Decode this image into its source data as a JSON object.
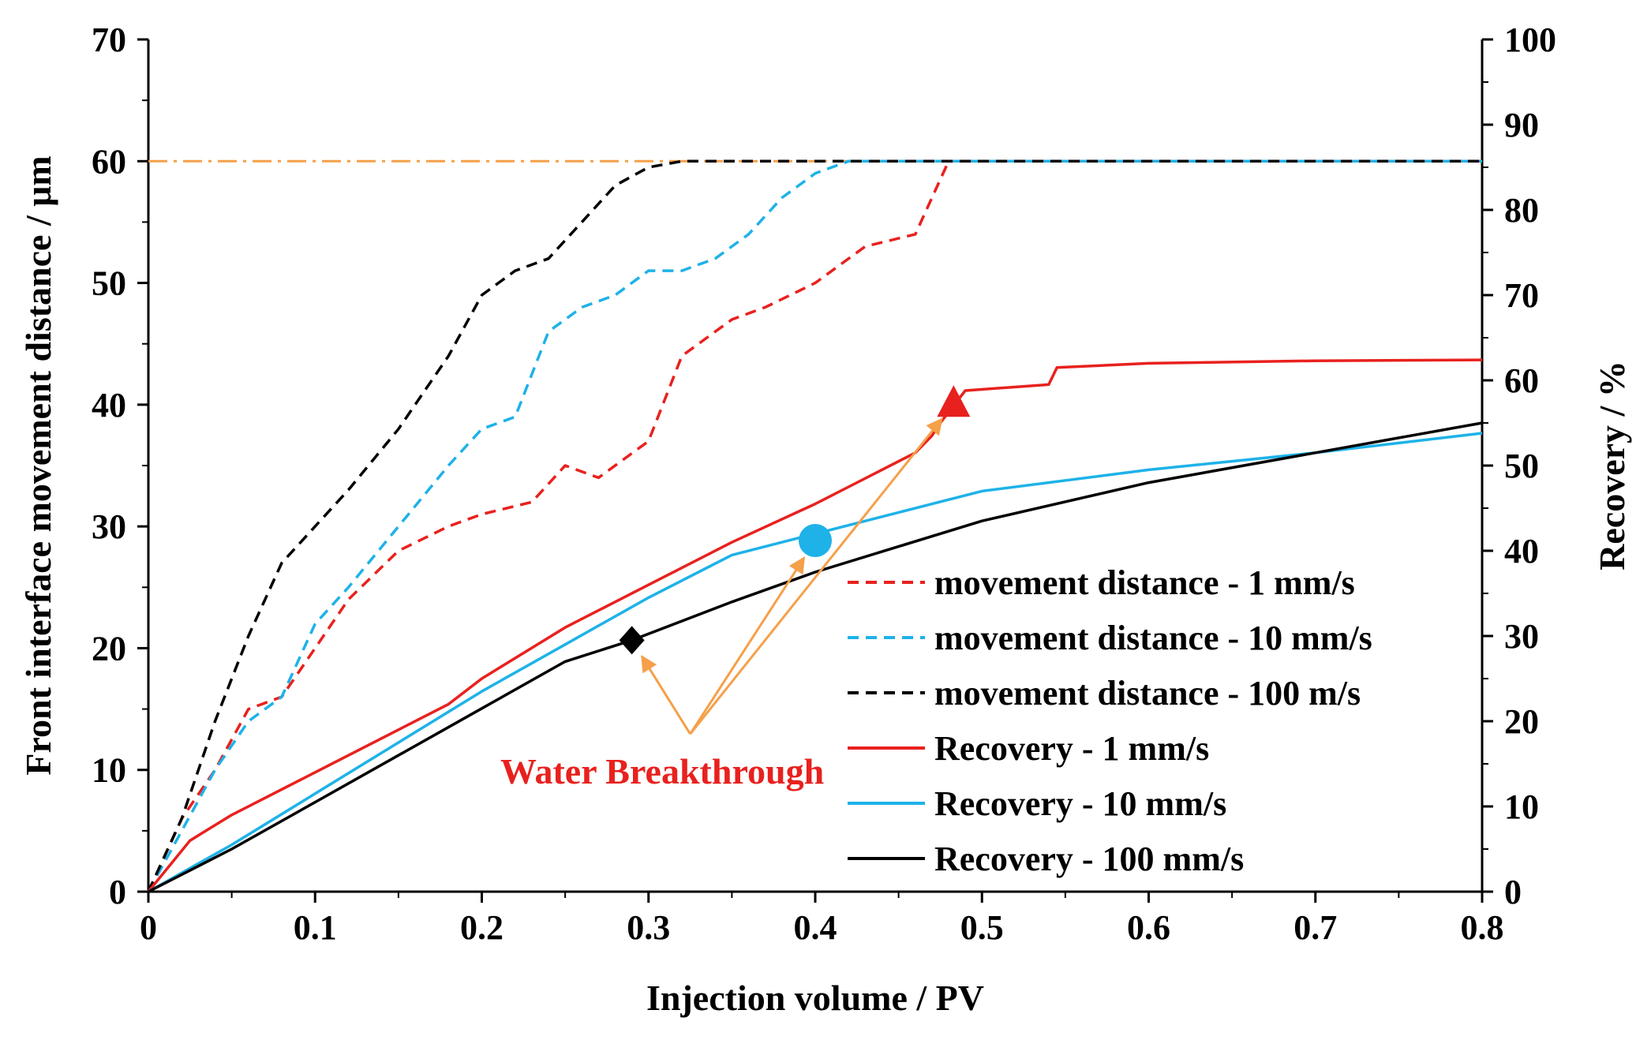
{
  "chart_data": {
    "type": "line",
    "title": "",
    "xlabel": "Injection  volume / PV",
    "ylabel_left": "Front interface movement distance / μm",
    "ylabel_right": "Recovery / %",
    "xlim": [
      0,
      0.8
    ],
    "ylim_left": [
      0,
      70
    ],
    "ylim_right": [
      0,
      100
    ],
    "x_ticks": [
      "0",
      "0.1",
      "0.2",
      "0.3",
      "0.4",
      "0.5",
      "0.6",
      "0.7",
      "0.8"
    ],
    "y_left_ticks": [
      "0",
      "10",
      "20",
      "30",
      "40",
      "50",
      "60",
      "70"
    ],
    "y_right_ticks": [
      "0",
      "10",
      "20",
      "30",
      "40",
      "50",
      "60",
      "70",
      "80",
      "90",
      "100"
    ],
    "grid": false,
    "legend_position": "bottom-right",
    "reference_line": {
      "axis": "left",
      "y": 60,
      "color": "#F5A04A",
      "style": "dash-dot"
    },
    "series": [
      {
        "name": "movement distance -  1 mm/s",
        "axis": "left",
        "style": "dashed",
        "color": "#E8211E",
        "x": [
          0,
          0.02,
          0.04,
          0.06,
          0.08,
          0.1,
          0.12,
          0.15,
          0.18,
          0.2,
          0.23,
          0.25,
          0.27,
          0.3,
          0.32,
          0.35,
          0.37,
          0.4,
          0.43,
          0.46,
          0.48,
          0.5,
          0.6,
          0.7,
          0.8
        ],
        "values": [
          0,
          6,
          10,
          15,
          16,
          20,
          24,
          28,
          30,
          31,
          32,
          35,
          34,
          37,
          44,
          47,
          48,
          50,
          53,
          54,
          60,
          60,
          60,
          60,
          60
        ]
      },
      {
        "name": "movement distance -  10 mm/s",
        "axis": "left",
        "style": "dashed",
        "color": "#1EB2E8",
        "x": [
          0,
          0.02,
          0.04,
          0.06,
          0.08,
          0.1,
          0.12,
          0.15,
          0.18,
          0.2,
          0.22,
          0.24,
          0.26,
          0.28,
          0.3,
          0.32,
          0.34,
          0.36,
          0.38,
          0.4,
          0.42,
          0.5,
          0.6,
          0.7,
          0.8
        ],
        "values": [
          0,
          5,
          10,
          14,
          16,
          22,
          25,
          30,
          35,
          38,
          39,
          46,
          48,
          49,
          51,
          51,
          52,
          54,
          57,
          59,
          60,
          60,
          60,
          60,
          60
        ]
      },
      {
        "name": "movement distance - 100 m/s",
        "axis": "left",
        "style": "dashed",
        "color": "#000000",
        "x": [
          0,
          0.02,
          0.04,
          0.06,
          0.08,
          0.1,
          0.12,
          0.15,
          0.18,
          0.2,
          0.22,
          0.24,
          0.26,
          0.28,
          0.3,
          0.32,
          0.4,
          0.5,
          0.6,
          0.7,
          0.8
        ],
        "values": [
          0,
          6,
          14,
          21,
          27,
          30,
          33,
          38,
          44,
          49,
          51,
          52,
          55,
          58,
          59.5,
          60,
          60,
          60,
          60,
          60,
          60
        ]
      },
      {
        "name": "Recovery -  1 mm/s",
        "axis": "right",
        "style": "solid",
        "color": "#E8211E",
        "x": [
          0,
          0.025,
          0.05,
          0.06,
          0.1,
          0.15,
          0.18,
          0.2,
          0.25,
          0.3,
          0.35,
          0.4,
          0.42,
          0.46,
          0.47,
          0.475,
          0.49,
          0.54,
          0.545,
          0.6,
          0.7,
          0.8
        ],
        "values": [
          0,
          6,
          9,
          10,
          14,
          19,
          22,
          25,
          31,
          36,
          41,
          45.5,
          47.5,
          51.5,
          53.5,
          55,
          58.8,
          59.5,
          61.5,
          62,
          62.3,
          62.4
        ]
      },
      {
        "name": "Recovery - 10 mm/s",
        "axis": "right",
        "style": "solid",
        "color": "#1EB2E8",
        "x": [
          0,
          0.05,
          0.1,
          0.15,
          0.2,
          0.25,
          0.3,
          0.35,
          0.4,
          0.45,
          0.5,
          0.6,
          0.7,
          0.8
        ],
        "values": [
          0,
          5.5,
          11.5,
          17.5,
          23.5,
          29,
          34.5,
          39.5,
          42,
          44.5,
          47,
          49.5,
          51.5,
          53.8
        ]
      },
      {
        "name": "Recovery - 100 mm/s",
        "axis": "right",
        "style": "solid",
        "color": "#000000",
        "x": [
          0,
          0.05,
          0.1,
          0.15,
          0.2,
          0.25,
          0.29,
          0.35,
          0.4,
          0.45,
          0.5,
          0.6,
          0.7,
          0.8
        ],
        "values": [
          0,
          5,
          10.5,
          16,
          21.5,
          27,
          29.5,
          34,
          37.5,
          40.5,
          43.5,
          48,
          51.5,
          55
        ]
      }
    ],
    "markers": [
      {
        "series": "Recovery - 100 mm/s",
        "x": 0.29,
        "y": 29.5,
        "shape": "diamond",
        "color": "#000000"
      },
      {
        "series": "Recovery - 10 mm/s",
        "x": 0.4,
        "y": 41.2,
        "shape": "circle",
        "color": "#1EB2E8"
      },
      {
        "series": "Recovery -  1 mm/s",
        "x": 0.483,
        "y": 57.2,
        "shape": "triangle",
        "color": "#E8211E"
      }
    ],
    "annotations": [
      {
        "text": "Water Breakthrough",
        "color": "#E8211E",
        "arrow_origin": {
          "x": 0.325,
          "y_right": 18.5
        },
        "arrow_color": "#F5A04A"
      }
    ]
  }
}
